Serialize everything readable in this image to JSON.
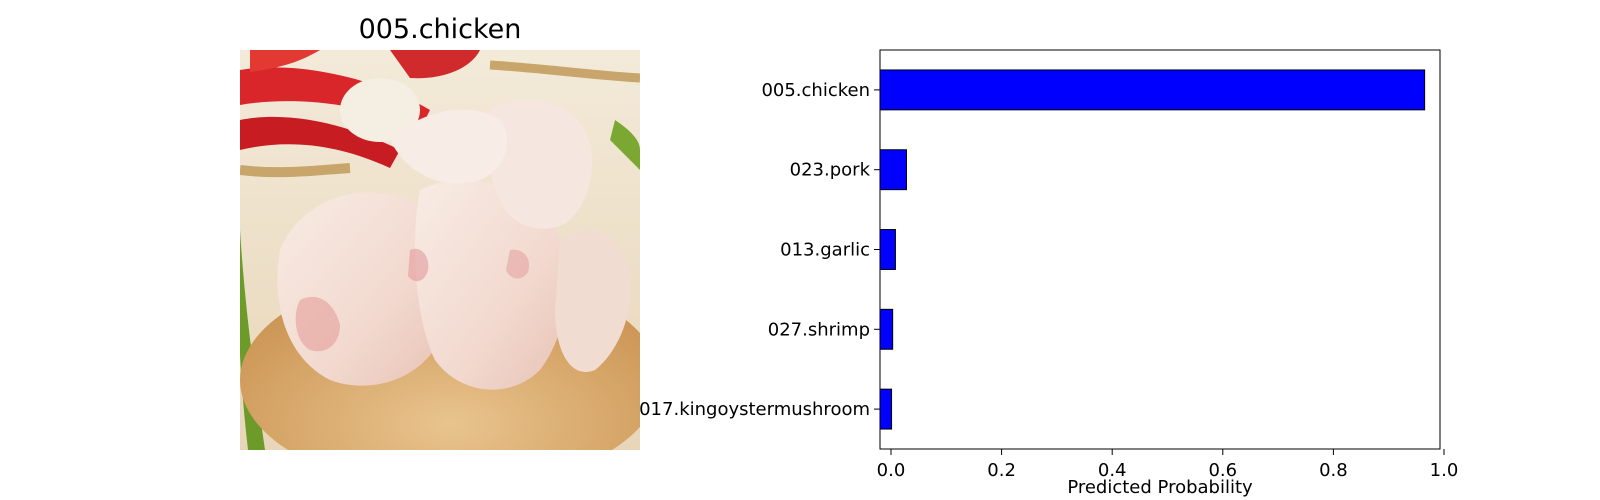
{
  "image_panel": {
    "title": "005.chicken"
  },
  "chart_data": {
    "type": "bar",
    "orientation": "horizontal",
    "categories": [
      "005.chicken",
      "023.pork",
      "013.garlic",
      "027.shrimp",
      "017.kingoystermushroom"
    ],
    "values": [
      0.965,
      0.028,
      0.008,
      0.003,
      0.001
    ],
    "xlabel": "Predicted Probability",
    "ylabel": "",
    "xlim": [
      0,
      1.0
    ],
    "xticks": [
      "0.0",
      "0.2",
      "0.4",
      "0.6",
      "0.8",
      "1.0"
    ],
    "grid": false,
    "legend": "none",
    "bar_color": "#0000ff",
    "edge_color": "#000000"
  }
}
